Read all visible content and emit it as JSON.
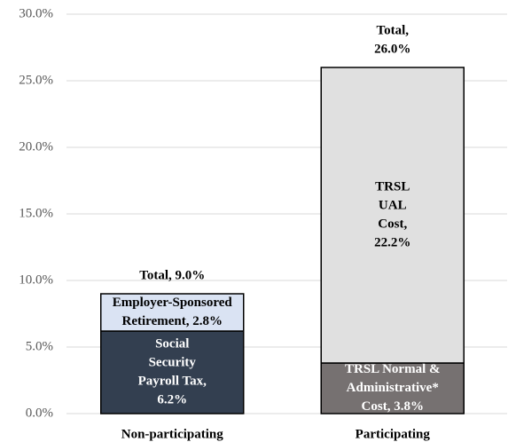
{
  "chart_data": {
    "type": "stacked_bar",
    "categories": [
      "Non-participating",
      "Participating"
    ],
    "series": [
      {
        "color": "#333f50",
        "label_color": "#ffffff",
        "values": [
          6.2,
          null
        ],
        "value_labels": [
          [
            "Social",
            "Security",
            "Payroll Tax,",
            "6.2%"
          ],
          null
        ]
      },
      {
        "color": "#dae3f3",
        "label_color": "#000000",
        "values": [
          2.8,
          null
        ],
        "value_labels": [
          [
            "Employer-Sponsored",
            "Retirement, 2.8%"
          ],
          null
        ]
      },
      {
        "color": "#767171",
        "label_color": "#ffffff",
        "values": [
          null,
          3.8
        ],
        "value_labels": [
          null,
          [
            "TRSL Normal &",
            "Administrative*",
            "Cost, 3.8%"
          ]
        ]
      },
      {
        "color": "#e0e0e0",
        "label_color": "#000000",
        "values": [
          null,
          22.2
        ],
        "value_labels": [
          null,
          [
            "TRSL",
            "UAL",
            "Cost,",
            "22.2%"
          ]
        ]
      }
    ],
    "totals": [
      9.0,
      26.0
    ],
    "total_labels": [
      [
        "Total, 9.0%"
      ],
      [
        "Total,",
        "26.0%"
      ]
    ],
    "ylim": [
      0,
      30
    ],
    "yticks": [
      {
        "value": 0,
        "label": "0.0%"
      },
      {
        "value": 5,
        "label": "5.0%"
      },
      {
        "value": 10,
        "label": "10.0%"
      },
      {
        "value": 15,
        "label": "15.0%"
      },
      {
        "value": 20,
        "label": "20.0%"
      },
      {
        "value": 25,
        "label": "25.0%"
      },
      {
        "value": 30,
        "label": "30.0%"
      }
    ],
    "grid": true
  }
}
